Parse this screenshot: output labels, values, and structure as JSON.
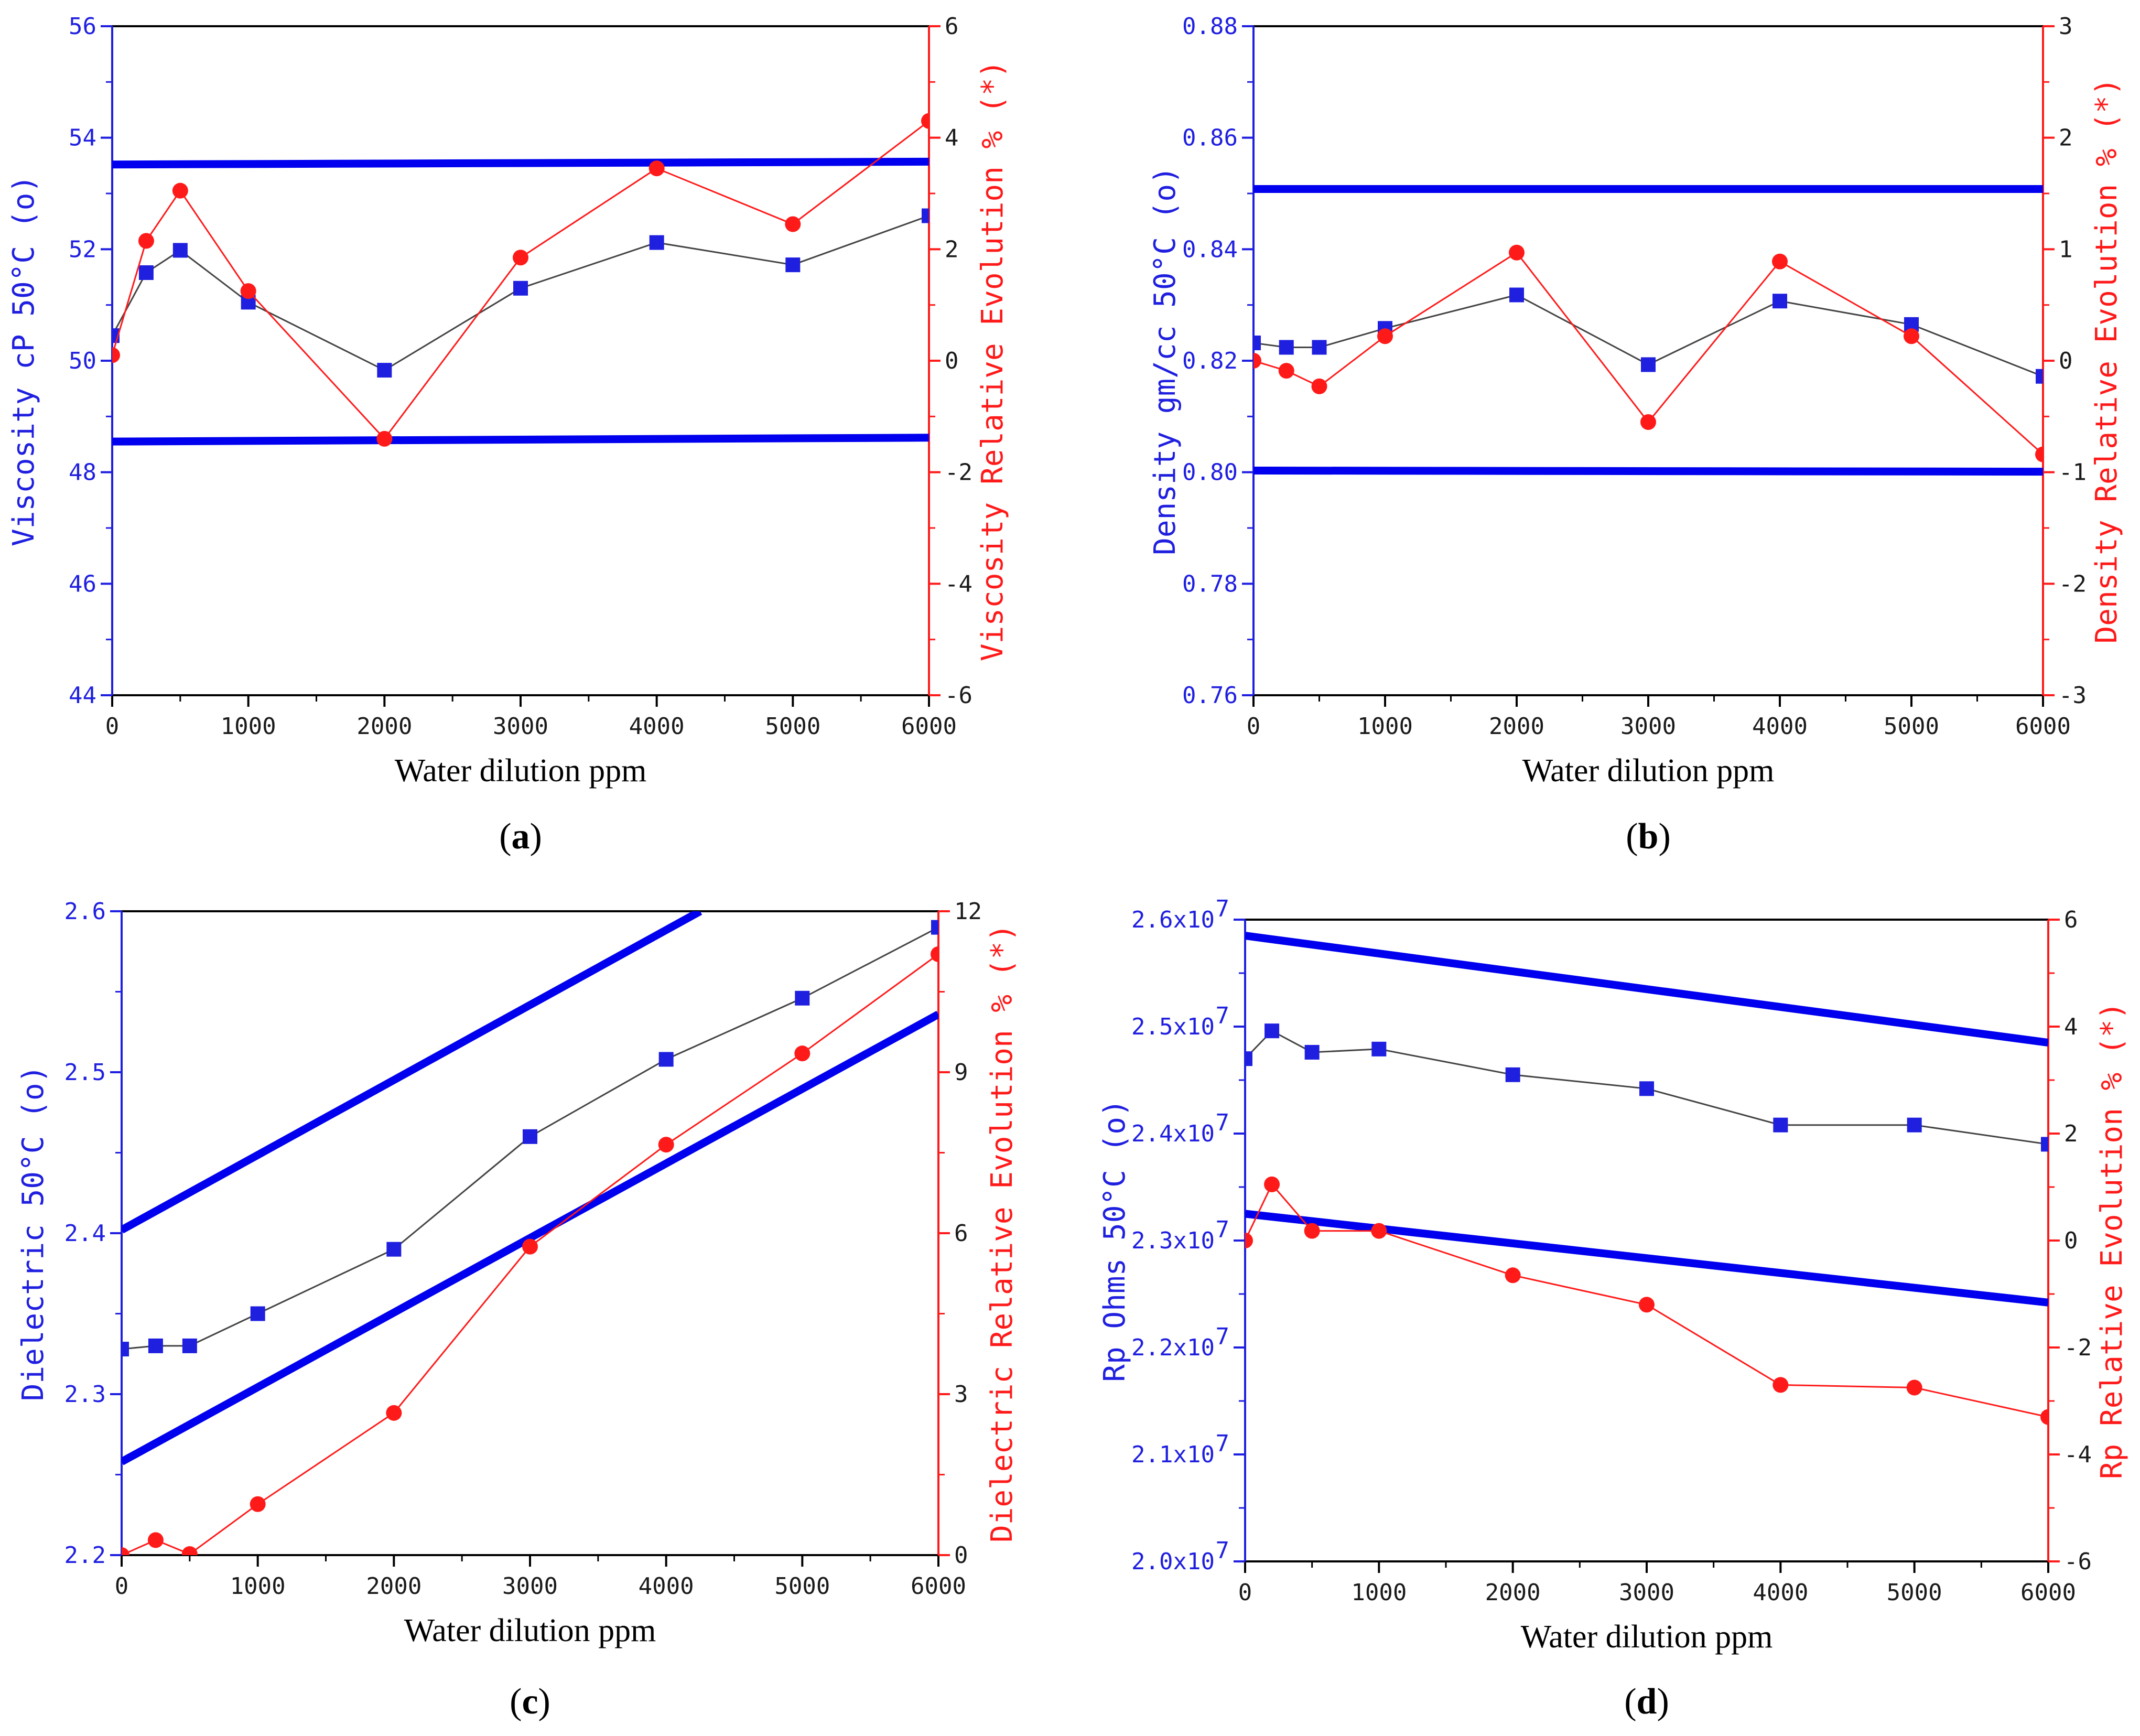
{
  "chart_data": [
    {
      "id": "a",
      "type": "line",
      "caption_letter": "a",
      "xlabel": "Water dilution ppm",
      "ylabel_left": "Viscosity cP 50°C (o)",
      "ylabel_right": "Viscosity Relative Evolution % (*)",
      "xlim": [
        0,
        6000
      ],
      "ylim_left": [
        44,
        56
      ],
      "ylim_right": [
        -6,
        6
      ],
      "x_ticks": [
        "0",
        "1000",
        "2000",
        "3000",
        "4000",
        "5000",
        "6000"
      ],
      "y_ticks_left": [
        "44",
        "46",
        "48",
        "50",
        "52",
        "54",
        "56"
      ],
      "y_ticks_right": [
        "-6",
        "-4",
        "-2",
        "0",
        "2",
        "4",
        "6"
      ],
      "colors": {
        "left_axis": "#1f1fe0",
        "right_axis": "#ff1a1a",
        "frame": "#000000",
        "band": "#0000ee",
        "left_series": "#444444"
      },
      "series": [
        {
          "name": "Viscosity cP 50°C (o)",
          "axis": "left",
          "marker": "square",
          "x": [
            0,
            250,
            500,
            1000,
            2000,
            3000,
            4000,
            5000,
            6000
          ],
          "y": [
            50.45,
            51.58,
            51.98,
            51.05,
            49.83,
            51.3,
            52.12,
            51.72,
            52.6
          ]
        },
        {
          "name": "Viscosity Relative Evolution % (*)",
          "axis": "right",
          "marker": "circle",
          "x": [
            0,
            250,
            500,
            1000,
            2000,
            3000,
            4000,
            5000,
            6000
          ],
          "y": [
            0.1,
            2.15,
            3.05,
            1.25,
            -1.4,
            1.85,
            3.45,
            2.45,
            4.3
          ]
        }
      ],
      "reference_lines": [
        {
          "axis": "left",
          "x": [
            0,
            6000
          ],
          "y": [
            53.52,
            53.57
          ]
        },
        {
          "axis": "left",
          "x": [
            0,
            6000
          ],
          "y": [
            48.55,
            48.62
          ]
        }
      ]
    },
    {
      "id": "b",
      "type": "line",
      "caption_letter": "b",
      "xlabel": "Water dilution ppm",
      "ylabel_left": "Density gm/cc 50°C (o)",
      "ylabel_right": "Density Relative Evolution % (*)",
      "xlim": [
        0,
        6000
      ],
      "ylim_left": [
        0.76,
        0.88
      ],
      "ylim_right": [
        -3,
        3
      ],
      "x_ticks": [
        "0",
        "1000",
        "2000",
        "3000",
        "4000",
        "5000",
        "6000"
      ],
      "y_ticks_left": [
        "0.76",
        "0.78",
        "0.80",
        "0.82",
        "0.84",
        "0.86",
        "0.88"
      ],
      "y_ticks_right": [
        "-3",
        "-2",
        "-1",
        "0",
        "1",
        "2",
        "3"
      ],
      "colors": {
        "left_axis": "#1f1fe0",
        "right_axis": "#ff1a1a",
        "frame": "#000000",
        "band": "#0000ee",
        "left_series": "#444444"
      },
      "series": [
        {
          "name": "Density gm/cc 50°C (o)",
          "axis": "left",
          "marker": "square",
          "x": [
            0,
            250,
            500,
            1000,
            2000,
            3000,
            4000,
            5000,
            6000
          ],
          "y": [
            0.8232,
            0.8224,
            0.8224,
            0.8258,
            0.8318,
            0.8193,
            0.8307,
            0.8265,
            0.8172
          ]
        },
        {
          "name": "Density Relative Evolution % (*)",
          "axis": "right",
          "marker": "circle",
          "x": [
            0,
            250,
            500,
            1000,
            2000,
            3000,
            4000,
            5000,
            6000
          ],
          "y": [
            0.0,
            -0.09,
            -0.23,
            0.22,
            0.97,
            -0.55,
            0.89,
            0.22,
            -0.84
          ]
        }
      ],
      "reference_lines": [
        {
          "axis": "left",
          "x": [
            0,
            6000
          ],
          "y": [
            0.8508,
            0.8508
          ]
        },
        {
          "axis": "left",
          "x": [
            0,
            6000
          ],
          "y": [
            0.8003,
            0.8001
          ]
        }
      ]
    },
    {
      "id": "c",
      "type": "line",
      "caption_letter": "c",
      "xlabel": "Water dilution ppm",
      "ylabel_left": "Dielectric 50°C (o)",
      "ylabel_right": "Dielectric Relative Evolution % (*)",
      "xlim": [
        0,
        6000
      ],
      "ylim_left": [
        2.2,
        2.6
      ],
      "ylim_right": [
        0,
        12
      ],
      "x_ticks": [
        "0",
        "1000",
        "2000",
        "3000",
        "4000",
        "5000",
        "6000"
      ],
      "y_ticks_left": [
        "2.2",
        "2.3",
        "2.4",
        "2.5",
        "2.6"
      ],
      "y_ticks_right": [
        "0",
        "3",
        "6",
        "9",
        "12"
      ],
      "colors": {
        "left_axis": "#1f1fe0",
        "right_axis": "#ff1a1a",
        "frame": "#000000",
        "band": "#0000ee",
        "left_series": "#444444"
      },
      "series": [
        {
          "name": "Dielectric 50°C (o)",
          "axis": "left",
          "marker": "square",
          "x": [
            0,
            250,
            500,
            1000,
            2000,
            3000,
            4000,
            5000,
            6000
          ],
          "y": [
            2.328,
            2.33,
            2.33,
            2.35,
            2.39,
            2.46,
            2.508,
            2.546,
            2.59
          ]
        },
        {
          "name": "Dielectric Relative Evolution % (*)",
          "axis": "right",
          "marker": "circle",
          "x": [
            0,
            250,
            500,
            1000,
            2000,
            3000,
            4000,
            5000,
            6000
          ],
          "y": [
            0.0,
            0.28,
            0.02,
            0.95,
            2.65,
            5.75,
            7.65,
            9.35,
            11.2
          ]
        }
      ],
      "reference_lines": [
        {
          "axis": "left",
          "x": [
            0,
            4250
          ],
          "y": [
            2.402,
            2.6
          ]
        },
        {
          "axis": "left",
          "x": [
            0,
            6000
          ],
          "y": [
            2.258,
            2.536
          ]
        }
      ]
    },
    {
      "id": "d",
      "type": "line",
      "caption_letter": "d",
      "xlabel": "Water dilution ppm",
      "ylabel_left": "Rp Ohms 50°C (o)",
      "ylabel_right": "Rp Relative Evolution % (*)",
      "xlim": [
        0,
        6000
      ],
      "ylim_left": [
        20000000,
        26000000
      ],
      "ylim_right": [
        -6,
        6
      ],
      "x_ticks": [
        "0",
        "1000",
        "2000",
        "3000",
        "4000",
        "5000",
        "6000"
      ],
      "y_ticks_left": [
        "2.0x10",
        "2.1x10",
        "2.2x10",
        "2.3x10",
        "2.4x10",
        "2.5x10",
        "2.6x10"
      ],
      "y_ticks_left_exponent": "7",
      "y_ticks_right": [
        "-6",
        "-4",
        "-2",
        "0",
        "2",
        "4",
        "6"
      ],
      "colors": {
        "left_axis": "#1f1fe0",
        "right_axis": "#ff1a1a",
        "frame": "#000000",
        "band": "#0000ee",
        "left_series": "#444444"
      },
      "series": [
        {
          "name": "Rp Ohms 50°C (o)",
          "axis": "left",
          "marker": "square",
          "x": [
            0,
            200,
            500,
            1000,
            2000,
            3000,
            4000,
            5000,
            6000
          ],
          "y": [
            24700000,
            24960000,
            24760000,
            24790000,
            24550000,
            24420000,
            24080000,
            24080000,
            23900000
          ]
        },
        {
          "name": "Rp Relative Evolution % (*)",
          "axis": "right",
          "marker": "circle",
          "x": [
            0,
            200,
            500,
            1000,
            2000,
            3000,
            4000,
            5000,
            6000
          ],
          "y": [
            0.0,
            1.05,
            0.18,
            0.18,
            -0.65,
            -1.2,
            -2.7,
            -2.75,
            -3.3
          ]
        }
      ],
      "reference_lines": [
        {
          "axis": "left",
          "x": [
            0,
            6000
          ],
          "y": [
            25850000,
            24850000
          ]
        },
        {
          "axis": "left",
          "x": [
            0,
            6000
          ],
          "y": [
            23250000,
            22420000
          ]
        }
      ]
    }
  ]
}
